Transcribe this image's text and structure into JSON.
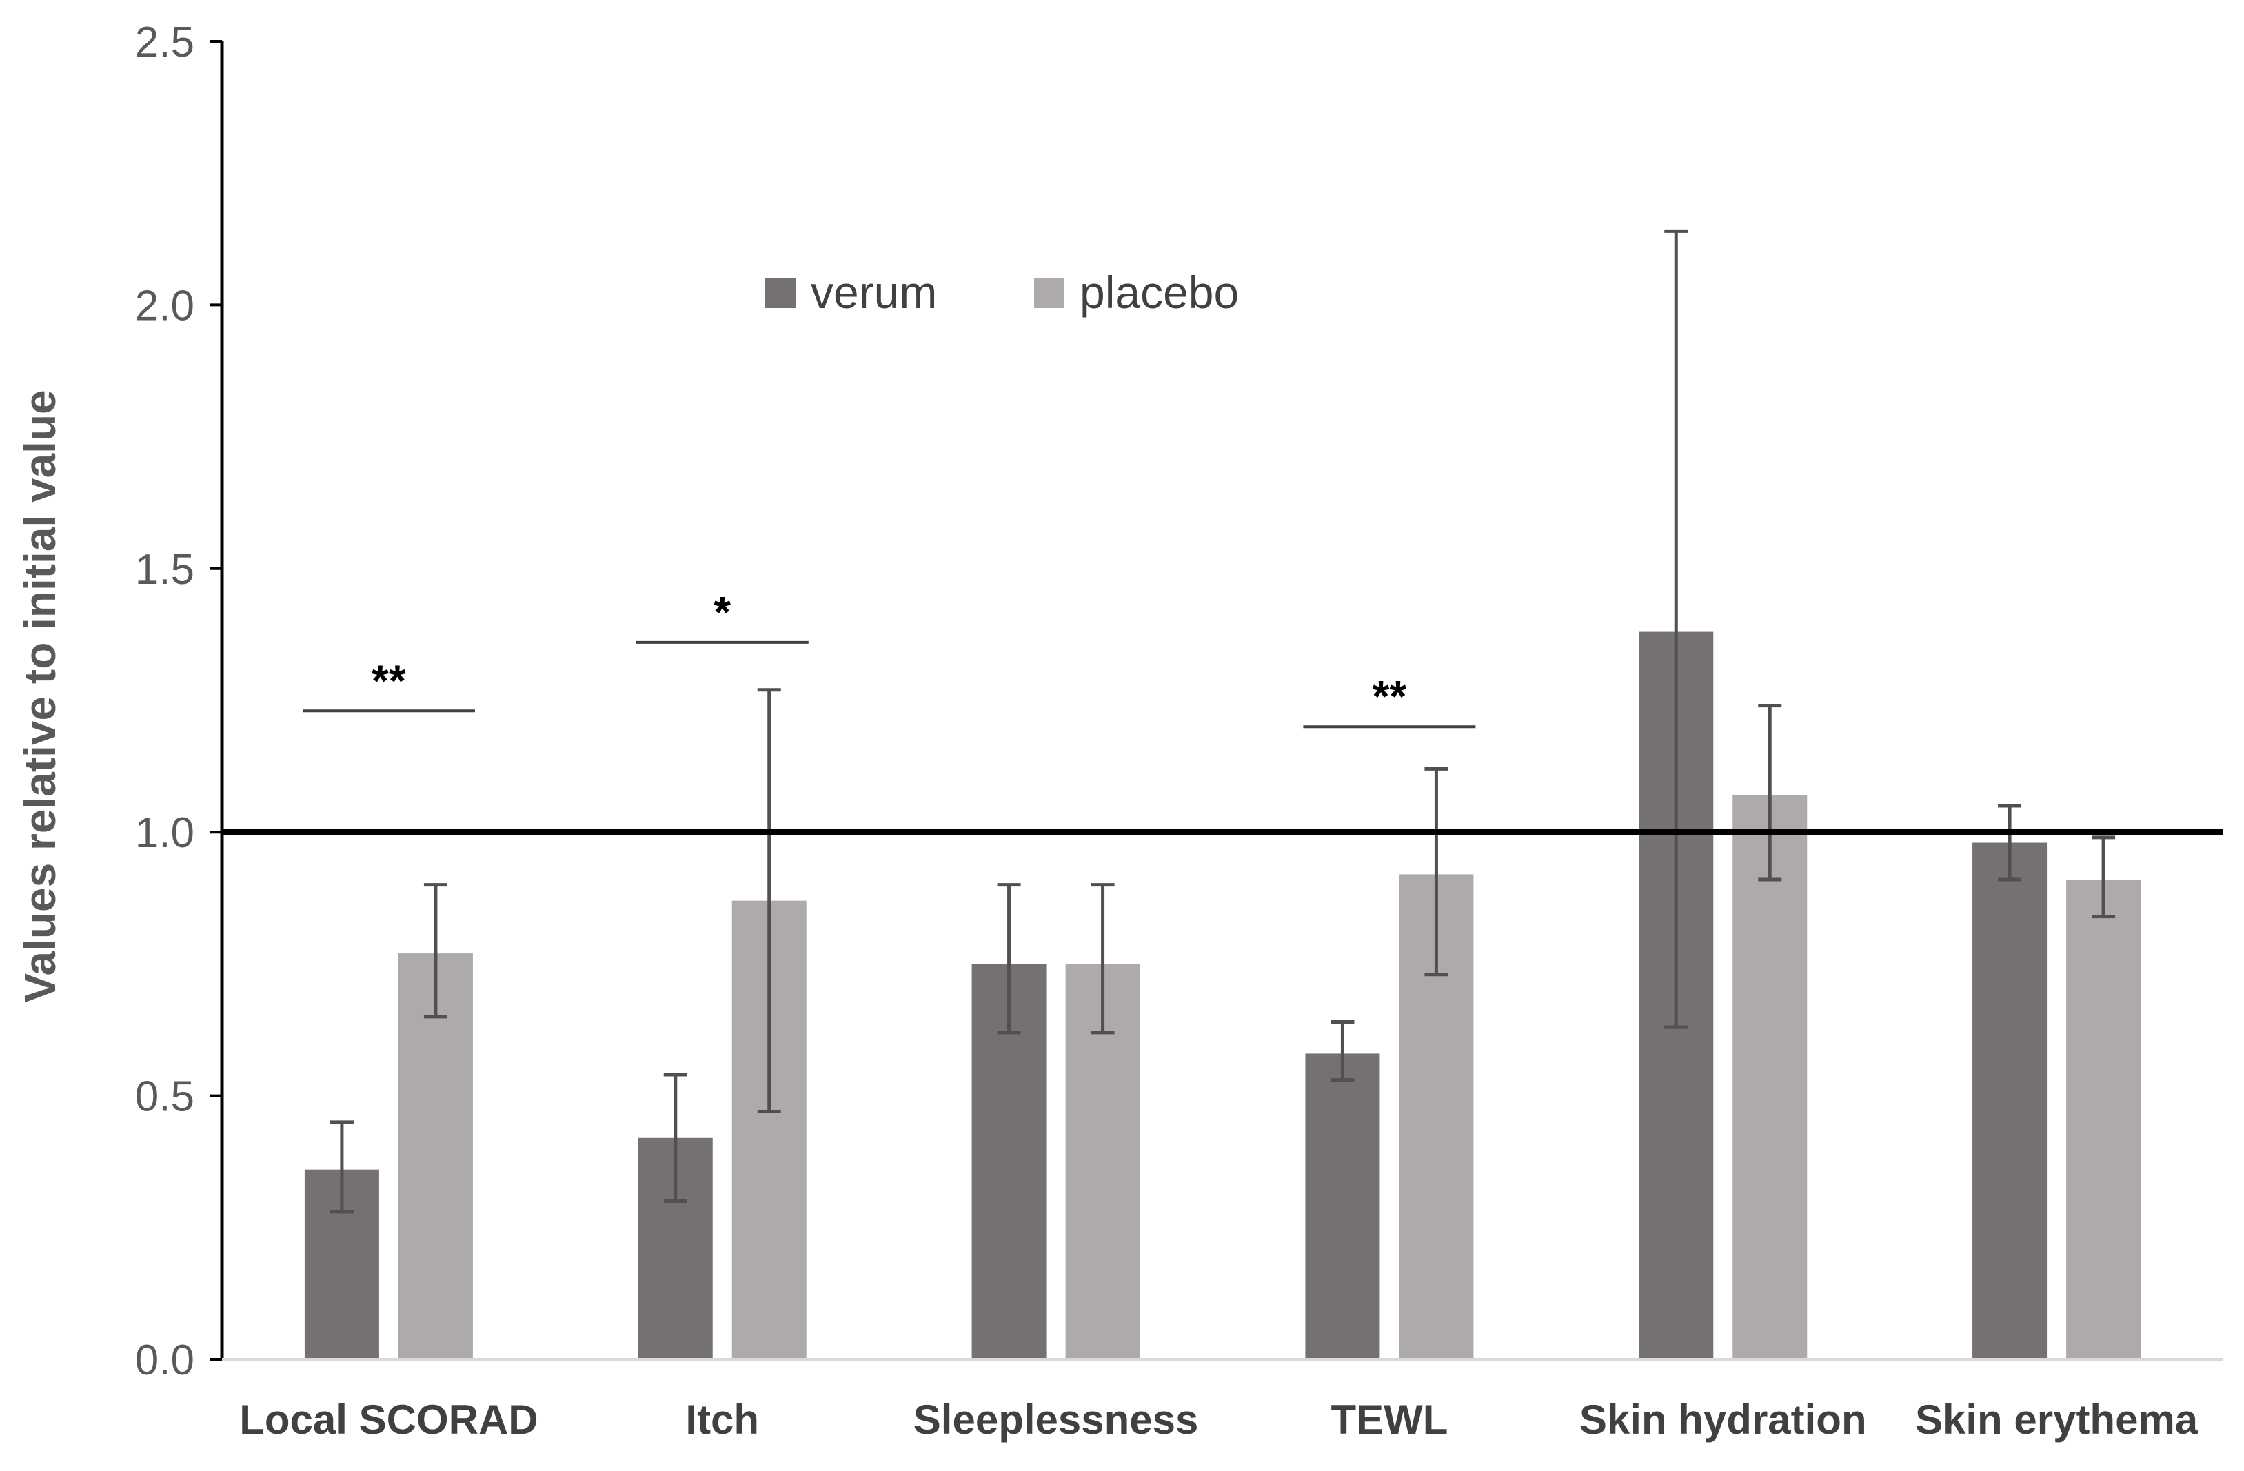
{
  "chart_data": {
    "type": "bar",
    "title": "",
    "xlabel": "",
    "ylabel": "Values relative to initial value",
    "ylim": [
      0,
      2.5
    ],
    "yticks": [
      "0.0",
      "0.5",
      "1.0",
      "1.5",
      "2.0",
      "2.5"
    ],
    "reference_line": 1.0,
    "grid": false,
    "legend_position": "top-center",
    "categories": [
      "Local SCORAD",
      "Itch",
      "Sleeplessness",
      "TEWL",
      "Skin hydration",
      "Skin erythema"
    ],
    "series": [
      {
        "name": "verum",
        "color": "#767171",
        "values": [
          0.36,
          0.42,
          0.75,
          0.58,
          1.38,
          0.98
        ],
        "err_low": [
          0.28,
          0.3,
          0.62,
          0.53,
          0.63,
          0.91
        ],
        "err_high": [
          0.45,
          0.54,
          0.9,
          0.64,
          2.14,
          1.05
        ]
      },
      {
        "name": "placebo",
        "color": "#AEAAAA",
        "values": [
          0.77,
          0.87,
          0.75,
          0.92,
          1.07,
          0.91
        ],
        "err_low": [
          0.65,
          0.47,
          0.62,
          0.73,
          0.91,
          0.84
        ],
        "err_high": [
          0.9,
          1.27,
          0.9,
          1.12,
          1.24,
          0.99
        ]
      }
    ],
    "significance": [
      {
        "category": "Local SCORAD",
        "label": "**",
        "level": 1.23
      },
      {
        "category": "Itch",
        "label": "*",
        "level": 1.36
      },
      {
        "category": "TEWL",
        "label": "**",
        "level": 1.2
      }
    ]
  }
}
